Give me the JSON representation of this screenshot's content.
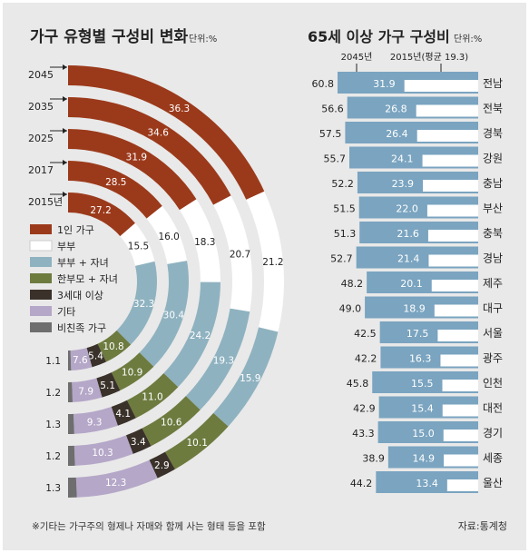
{
  "colors": {
    "background": "#e9e9e9",
    "one_person": "#9b3a1b",
    "couple": "#ffffff",
    "couple_children": "#8fb2c0",
    "single_parent_children": "#6d7b3f",
    "three_gen": "#3a322a",
    "other": "#b5a7c8",
    "non_family": "#6e6e6e",
    "bar_2015": "#ffffff",
    "bar_2045": "#7aa4c0",
    "bar_2045_border": "#5a86a4"
  },
  "chart_data": [
    {
      "type": "semi-donut",
      "title": "가구 유형별 구성비 변화",
      "unit_label": "단위:%",
      "rings": [
        "2045",
        "2035",
        "2025",
        "2017",
        "2015년"
      ],
      "categories": [
        "1인 가구",
        "부부",
        "부부 + 자녀",
        "한부모 + 자녀",
        "3세대 이상",
        "기타",
        "비친족 가구"
      ],
      "series": [
        {
          "name": "2045",
          "values": [
            36.3,
            21.2,
            15.9,
            10.1,
            2.9,
            12.3,
            1.3
          ],
          "labels": [
            "36.3",
            "21.2",
            "15.9",
            "10.1",
            "2.9",
            "12.3",
            "1.3"
          ]
        },
        {
          "name": "2035",
          "values": [
            34.6,
            20.7,
            19.3,
            10.6,
            3.4,
            10.3,
            1.2
          ],
          "labels": [
            "34.6",
            "20.7",
            "19.3",
            "10.6",
            "3.4",
            "10.3",
            "1.2"
          ]
        },
        {
          "name": "2025",
          "values": [
            31.9,
            18.3,
            24.2,
            11.0,
            4.1,
            9.3,
            1.3
          ],
          "labels": [
            "31.9",
            "18.3",
            "24.2",
            "11.0",
            "4.1",
            "9.3",
            "1.3"
          ]
        },
        {
          "name": "2017",
          "values": [
            28.5,
            16.0,
            30.4,
            10.9,
            5.1,
            7.9,
            1.2
          ],
          "labels": [
            "28.5",
            "16.0",
            "30.4",
            "10.9",
            "5.1",
            "7.9",
            "1.2"
          ]
        },
        {
          "name": "2015년",
          "values": [
            27.2,
            15.5,
            32.3,
            10.8,
            5.4,
            7.6,
            1.1
          ],
          "labels": [
            "27.2",
            "15.5",
            "32.3",
            "10.8",
            "5.4",
            "7.6",
            "1.1"
          ]
        }
      ],
      "footnote": "※기타는 가구주의 형제나 자매와 함께 사는 형태 등을 포함"
    },
    {
      "type": "bar",
      "title": "65세 이상 가구 구성비",
      "unit_label": "단위:%",
      "legend_2045": "2045년",
      "legend_2015": "2015년(평균 19.3)",
      "categories": [
        "전남",
        "전북",
        "경북",
        "강원",
        "충남",
        "부산",
        "충북",
        "경남",
        "제주",
        "대구",
        "서울",
        "광주",
        "인천",
        "대전",
        "경기",
        "세종",
        "울산"
      ],
      "series": [
        {
          "name": "2045년",
          "values": [
            60.8,
            56.6,
            57.5,
            55.7,
            52.2,
            51.5,
            51.3,
            52.7,
            48.2,
            49.0,
            42.5,
            42.2,
            45.8,
            42.9,
            43.3,
            38.9,
            44.2
          ],
          "labels": [
            "60.8",
            "56.6",
            "57.5",
            "55.7",
            "52.2",
            "51.5",
            "51.3",
            "52.7",
            "48.2",
            "49.0",
            "42.5",
            "42.2",
            "45.8",
            "42.9",
            "43.3",
            "38.9",
            "44.2"
          ]
        },
        {
          "name": "2015년",
          "values": [
            31.9,
            26.8,
            26.4,
            24.1,
            23.9,
            22.0,
            21.6,
            21.4,
            20.1,
            18.9,
            17.5,
            16.3,
            15.5,
            15.4,
            15.0,
            14.9,
            13.4
          ],
          "labels": [
            "31.9",
            "26.8",
            "26.4",
            "24.1",
            "23.9",
            "22.0",
            "21.6",
            "21.4",
            "20.1",
            "18.9",
            "17.5",
            "16.3",
            "15.5",
            "15.4",
            "15.0",
            "14.9",
            "13.4"
          ]
        }
      ],
      "source": "자료:통계청"
    }
  ]
}
